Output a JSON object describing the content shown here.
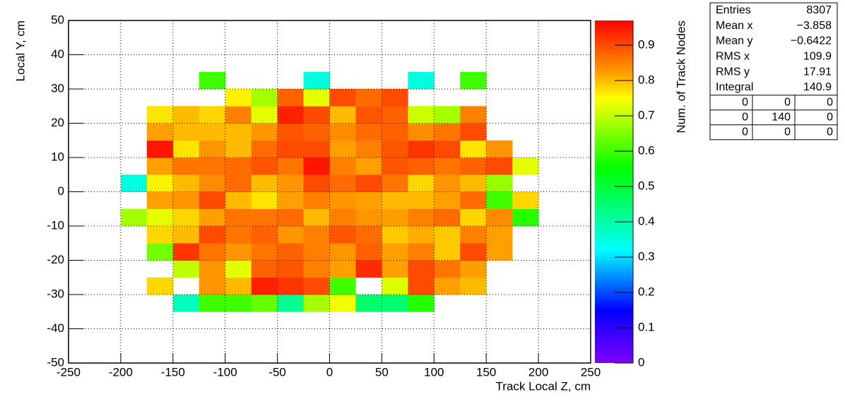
{
  "chart_data": {
    "type": "heatmap",
    "xlabel": "Track Local Z, cm",
    "ylabel": "Local Y, cm",
    "zlabel": "Num. of Track Nodes",
    "xlim": [
      -250,
      250
    ],
    "ylim": [
      -50,
      50
    ],
    "zlim": [
      0,
      0.97
    ],
    "xticks": [
      -250,
      -200,
      -150,
      -100,
      -50,
      0,
      50,
      100,
      150,
      200,
      250
    ],
    "yticks": [
      -50,
      -40,
      -30,
      -20,
      -10,
      0,
      10,
      20,
      30,
      40,
      50
    ],
    "zticks": [
      0,
      0.1,
      0.2,
      0.3,
      0.4,
      0.5,
      0.6,
      0.7,
      0.8,
      0.9
    ],
    "grid": true,
    "colorscale": [
      [
        0,
        "#8000ff"
      ],
      [
        0.15,
        "#0000ff"
      ],
      [
        0.32,
        "#00ffff"
      ],
      [
        0.55,
        "#00ff00"
      ],
      [
        0.75,
        "#ffff00"
      ],
      [
        0.82,
        "#ffa000"
      ],
      [
        0.97,
        "#ff0000"
      ]
    ],
    "xbins": [
      -200,
      -175,
      -150,
      -125,
      -100,
      -75,
      -50,
      -25,
      0,
      25,
      50,
      75,
      100,
      125,
      150,
      175,
      200
    ],
    "ybins": [
      -35,
      -30,
      -25,
      -20,
      -15,
      -10,
      -5,
      0,
      5,
      10,
      15,
      20,
      25,
      30,
      35
    ],
    "z": [
      [
        null,
        null,
        0.38,
        0.6,
        0.6,
        0.63,
        0.42,
        0.68,
        0.74,
        0.45,
        0.45,
        0.58,
        null,
        null,
        null,
        null
      ],
      [
        null,
        0.78,
        null,
        0.83,
        0.8,
        0.94,
        0.92,
        0.9,
        0.6,
        null,
        0.72,
        0.9,
        0.82,
        0.8,
        null,
        null
      ],
      [
        null,
        null,
        0.7,
        0.83,
        0.73,
        0.88,
        0.89,
        0.85,
        0.82,
        0.93,
        0.82,
        0.9,
        0.86,
        0.82,
        null,
        null
      ],
      [
        null,
        0.64,
        0.92,
        0.86,
        0.83,
        0.86,
        0.88,
        0.85,
        0.83,
        0.88,
        0.82,
        0.85,
        0.79,
        0.9,
        0.82,
        null
      ],
      [
        null,
        0.78,
        0.8,
        0.9,
        0.86,
        0.88,
        0.83,
        0.85,
        0.89,
        0.87,
        0.79,
        0.81,
        0.79,
        0.85,
        0.82,
        null
      ],
      [
        0.68,
        0.73,
        0.78,
        0.82,
        0.86,
        0.86,
        0.87,
        0.8,
        0.85,
        0.83,
        0.82,
        0.85,
        0.87,
        0.78,
        0.84,
        0.58
      ],
      [
        null,
        0.82,
        0.83,
        0.9,
        0.8,
        0.77,
        0.82,
        0.85,
        0.83,
        0.82,
        0.8,
        0.8,
        0.82,
        0.87,
        0.6,
        0.78
      ],
      [
        0.35,
        0.76,
        0.8,
        0.84,
        0.87,
        0.8,
        0.83,
        0.9,
        0.87,
        0.9,
        0.86,
        0.78,
        0.83,
        0.8,
        0.67,
        null
      ],
      [
        null,
        0.82,
        0.86,
        0.86,
        0.87,
        0.89,
        0.86,
        0.95,
        0.85,
        0.82,
        0.89,
        0.88,
        0.86,
        0.88,
        0.9,
        0.73
      ],
      [
        null,
        0.95,
        0.77,
        0.83,
        0.8,
        0.87,
        0.9,
        0.9,
        0.82,
        0.85,
        0.89,
        0.92,
        0.9,
        0.77,
        0.83,
        null
      ],
      [
        null,
        0.82,
        0.8,
        0.8,
        0.8,
        0.83,
        0.89,
        0.88,
        0.84,
        0.87,
        0.88,
        0.84,
        0.86,
        0.9,
        null,
        null
      ],
      [
        null,
        0.77,
        0.8,
        0.78,
        0.85,
        0.73,
        0.94,
        0.9,
        0.8,
        0.89,
        0.88,
        0.71,
        0.68,
        0.85,
        null,
        null
      ],
      [
        null,
        null,
        null,
        null,
        0.76,
        0.68,
        0.88,
        0.73,
        0.9,
        0.87,
        0.9,
        null,
        null,
        null,
        null,
        null
      ],
      [
        null,
        null,
        null,
        0.6,
        null,
        null,
        null,
        0.35,
        null,
        null,
        null,
        0.35,
        null,
        0.6,
        null,
        null
      ]
    ]
  },
  "stats": {
    "rows": [
      [
        "Entries",
        "8307"
      ],
      [
        "Mean x",
        "−3.858"
      ],
      [
        "Mean y",
        "−0.6422"
      ],
      [
        "RMS x",
        "109.9"
      ],
      [
        "RMS y",
        "17.91"
      ],
      [
        "Integral",
        "140.9"
      ]
    ],
    "grid": [
      [
        0,
        0,
        0
      ],
      [
        0,
        140,
        0
      ],
      [
        0,
        0,
        0
      ]
    ]
  }
}
